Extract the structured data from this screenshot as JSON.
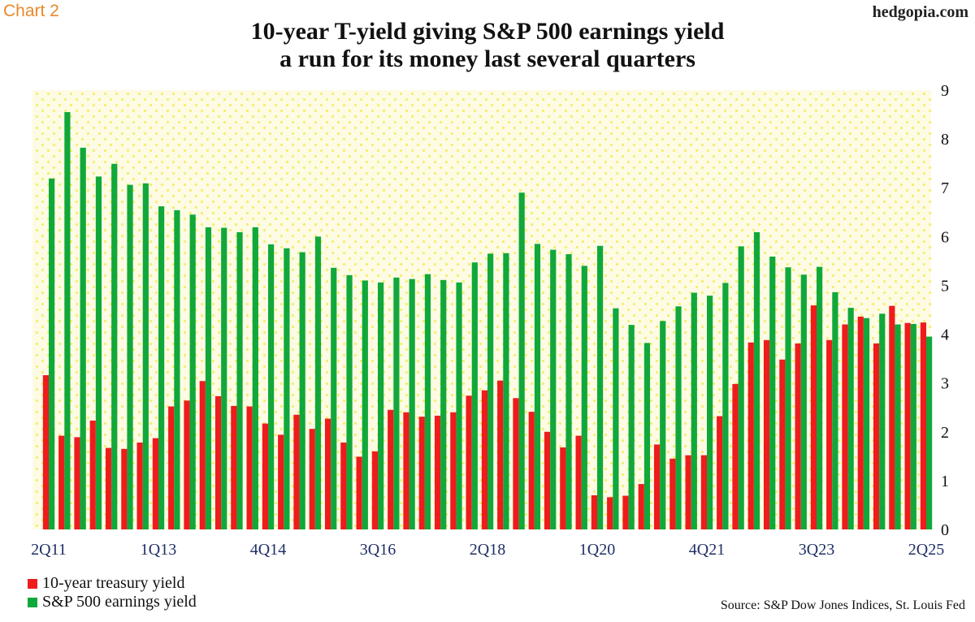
{
  "header": {
    "chart_label": "Chart 2",
    "brand": "hedgopia.com",
    "title_line1": "10-year T-yield giving S&P 500 earnings yield",
    "title_line2": "a run for its money last several quarters"
  },
  "legend": {
    "series1": "10-year treasury yield",
    "series2": "S&P 500 earnings yield"
  },
  "source": "Source: S&P Dow Jones Indices, St. Louis Fed",
  "colors": {
    "treasury": "#ee1c1c",
    "earnings": "#10a83a",
    "background": "#fdfbe4",
    "dots": "#f4ee70",
    "axis_text": "#1f2f66"
  },
  "chart_data": {
    "type": "bar",
    "title": "10-year T-yield giving S&P 500 earnings yield a run for its money last several quarters",
    "xlabel": "",
    "ylabel": "",
    "ylim": [
      0,
      9
    ],
    "yticks": [
      0,
      1,
      2,
      3,
      4,
      5,
      6,
      7,
      8,
      9
    ],
    "y_axis_side": "right",
    "grid": false,
    "legend_position": "bottom-left",
    "categories": [
      "2Q11",
      "3Q11",
      "4Q11",
      "1Q12",
      "2Q12",
      "3Q12",
      "4Q12",
      "1Q13",
      "2Q13",
      "3Q13",
      "4Q13",
      "1Q14",
      "2Q14",
      "3Q14",
      "4Q14",
      "1Q15",
      "2Q15",
      "3Q15",
      "4Q15",
      "1Q16",
      "2Q16",
      "3Q16",
      "4Q16",
      "1Q17",
      "2Q17",
      "3Q17",
      "4Q17",
      "1Q18",
      "2Q18",
      "3Q18",
      "4Q18",
      "1Q19",
      "2Q19",
      "3Q19",
      "4Q19",
      "1Q20",
      "2Q20",
      "3Q20",
      "4Q20",
      "1Q21",
      "2Q21",
      "3Q21",
      "4Q21",
      "1Q22",
      "2Q22",
      "3Q22",
      "4Q22",
      "1Q23",
      "2Q23",
      "3Q23",
      "4Q23",
      "1Q24",
      "2Q24",
      "3Q24",
      "4Q24",
      "1Q25",
      "2Q25"
    ],
    "tick_labels": [
      "2Q11",
      "1Q13",
      "4Q14",
      "3Q16",
      "2Q18",
      "1Q20",
      "4Q21",
      "3Q23",
      "2Q25"
    ],
    "series": [
      {
        "name": "10-year treasury yield",
        "values": [
          3.16,
          1.92,
          1.89,
          2.23,
          1.67,
          1.65,
          1.78,
          1.87,
          2.52,
          2.64,
          3.04,
          2.73,
          2.53,
          2.52,
          2.17,
          1.94,
          2.35,
          2.06,
          2.27,
          1.78,
          1.49,
          1.6,
          2.45,
          2.4,
          2.31,
          2.33,
          2.4,
          2.74,
          2.85,
          3.05,
          2.69,
          2.41,
          2.0,
          1.68,
          1.92,
          0.7,
          0.66,
          0.69,
          0.93,
          1.74,
          1.45,
          1.52,
          1.52,
          2.32,
          2.98,
          3.83,
          3.88,
          3.48,
          3.81,
          4.59,
          3.88,
          4.2,
          4.36,
          3.81,
          4.58,
          4.23,
          4.24
        ]
      },
      {
        "name": "S&P 500 earnings yield",
        "values": [
          7.19,
          8.55,
          7.82,
          7.23,
          7.49,
          7.06,
          7.09,
          6.62,
          6.54,
          6.45,
          6.19,
          6.18,
          6.09,
          6.19,
          5.84,
          5.76,
          5.68,
          6.0,
          5.36,
          5.21,
          5.1,
          5.06,
          5.16,
          5.13,
          5.23,
          5.11,
          5.06,
          5.47,
          5.65,
          5.66,
          6.9,
          5.85,
          5.73,
          5.64,
          5.4,
          5.81,
          4.53,
          4.19,
          3.82,
          4.27,
          4.57,
          4.85,
          4.79,
          5.05,
          5.8,
          6.09,
          5.59,
          5.37,
          5.22,
          5.38,
          4.86,
          4.54,
          4.33,
          4.42,
          4.2,
          4.21,
          3.95
        ]
      }
    ]
  }
}
